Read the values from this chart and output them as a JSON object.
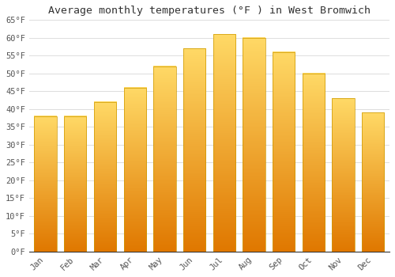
{
  "title": "Average monthly temperatures (°F ) in West Bromwich",
  "months": [
    "Jan",
    "Feb",
    "Mar",
    "Apr",
    "May",
    "Jun",
    "Jul",
    "Aug",
    "Sep",
    "Oct",
    "Nov",
    "Dec"
  ],
  "values": [
    38,
    38,
    42,
    46,
    52,
    57,
    61,
    60,
    56,
    50,
    43,
    39
  ],
  "bar_color_bottom": "#E07800",
  "bar_color_top": "#FFD966",
  "bar_edge_color": "#CC8800",
  "ylim": [
    0,
    65
  ],
  "yticks": [
    0,
    5,
    10,
    15,
    20,
    25,
    30,
    35,
    40,
    45,
    50,
    55,
    60,
    65
  ],
  "ytick_labels": [
    "0°F",
    "5°F",
    "10°F",
    "15°F",
    "20°F",
    "25°F",
    "30°F",
    "35°F",
    "40°F",
    "45°F",
    "50°F",
    "55°F",
    "60°F",
    "65°F"
  ],
  "background_color": "#FFFFFF",
  "grid_color": "#DDDDDD",
  "title_fontsize": 9.5,
  "tick_fontsize": 7.5,
  "font_family": "monospace"
}
